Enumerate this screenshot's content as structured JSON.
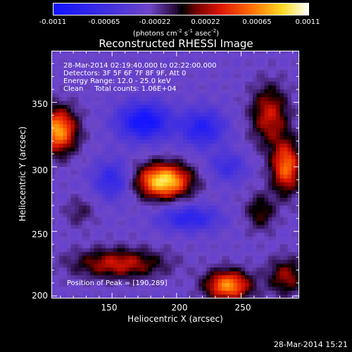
{
  "chart_data": {
    "type": "heatmap",
    "title": "Reconstructed RHESSI Image",
    "xlabel": "Heliocentric X (arcsec)",
    "ylabel": "Heliocentric Y (arcsec)",
    "xlim": [
      103,
      295
    ],
    "ylim": [
      198,
      390
    ],
    "x_ticks": [
      "150",
      "200",
      "250"
    ],
    "y_ticks": [
      "200",
      "250",
      "300",
      "350"
    ],
    "colorbar": {
      "ticks": [
        "-0.0011",
        "-0.00065",
        "-0.00022",
        "0.00022",
        "0.00065",
        "0.0011"
      ],
      "range": [
        -0.0011,
        0.0011
      ],
      "label_main": "(photons cm",
      "label_sup1": "-2",
      "label_mid1": " s",
      "label_sup2": "-1",
      "label_mid2": " asec",
      "label_sup3": "-2",
      "label_end": ")"
    },
    "annotations": {
      "time_range": "28-Mar-2014 02:19:40.000 to 02:22:00.000",
      "detectors": "Detectors: 3F 5F 6F 7F 8F 9F, Att 0",
      "energy": "Energy Range: 12.0 - 25.0 keV",
      "clean": "Clean     Total counts: 1.06E+04",
      "peak": "Position of Peak = [190,289]"
    },
    "blobs": [
      {
        "x": 190,
        "y": 289,
        "sx": 14,
        "sy": 9,
        "amp": 1.15
      },
      {
        "x": 108,
        "y": 328,
        "sx": 10,
        "sy": 12,
        "amp": 0.95
      },
      {
        "x": 285,
        "y": 300,
        "sx": 8,
        "sy": 14,
        "amp": 0.8
      },
      {
        "x": 272,
        "y": 340,
        "sx": 10,
        "sy": 16,
        "amp": 0.55
      },
      {
        "x": 240,
        "y": 208,
        "sx": 12,
        "sy": 8,
        "amp": 0.9
      },
      {
        "x": 155,
        "y": 225,
        "sx": 24,
        "sy": 8,
        "amp": 0.55
      },
      {
        "x": 285,
        "y": 215,
        "sx": 10,
        "sy": 10,
        "amp": 0.45
      },
      {
        "x": 125,
        "y": 265,
        "sx": 8,
        "sy": 8,
        "amp": 0.2
      },
      {
        "x": 265,
        "y": 265,
        "sx": 8,
        "sy": 10,
        "amp": 0.35
      },
      {
        "x": 175,
        "y": 335,
        "sx": 14,
        "sy": 10,
        "amp": -0.75
      },
      {
        "x": 220,
        "y": 330,
        "sx": 12,
        "sy": 10,
        "amp": -0.55
      },
      {
        "x": 210,
        "y": 260,
        "sx": 16,
        "sy": 7,
        "amp": -0.5
      },
      {
        "x": 150,
        "y": 290,
        "sx": 10,
        "sy": 10,
        "amp": -0.45
      },
      {
        "x": 240,
        "y": 300,
        "sx": 10,
        "sy": 8,
        "amp": -0.35
      }
    ]
  },
  "footer": {
    "timestamp": "28-Mar-2014 15:21"
  }
}
